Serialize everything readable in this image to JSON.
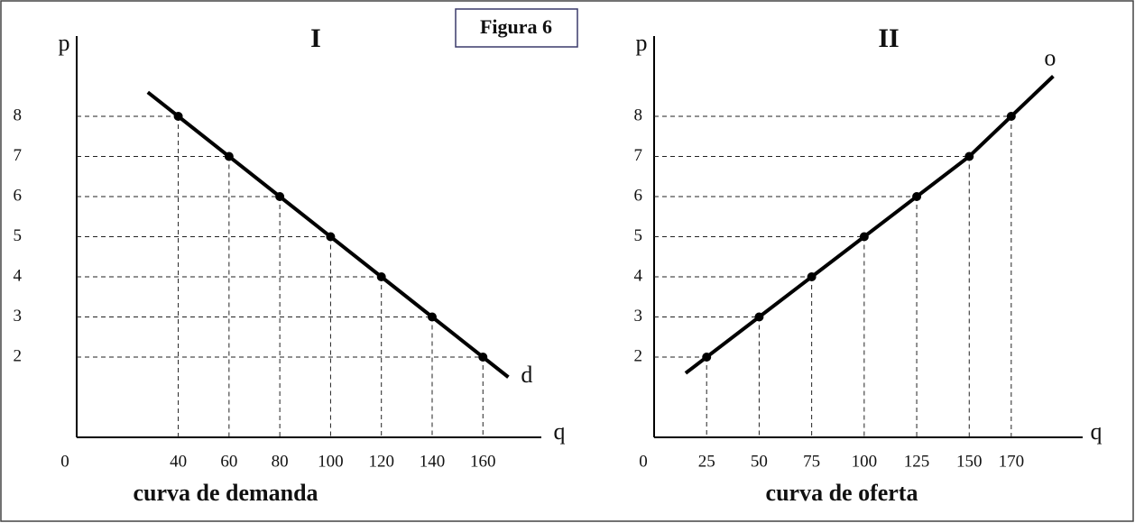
{
  "figure_label": "Figura 6",
  "chart_data": [
    {
      "type": "line",
      "title": "I",
      "caption": "curva de demanda",
      "xlabel": "q",
      "ylabel": "p",
      "curve_label": "d",
      "x": [
        40,
        60,
        80,
        100,
        120,
        140,
        160
      ],
      "series": [
        {
          "name": "d",
          "color": "#000000",
          "values": [
            8,
            7,
            6,
            5,
            4,
            3,
            2
          ]
        }
      ],
      "xlim": [
        0,
        183
      ],
      "ylim": [
        0,
        10
      ],
      "xticks": [
        0,
        40,
        60,
        80,
        100,
        120,
        140,
        160
      ],
      "yticks": [
        2,
        3,
        4,
        5,
        6,
        7,
        8
      ]
    },
    {
      "type": "line",
      "title": "II",
      "caption": "curva de oferta",
      "xlabel": "q",
      "ylabel": "p",
      "curve_label": "o",
      "x": [
        25,
        50,
        75,
        100,
        125,
        150,
        170
      ],
      "series": [
        {
          "name": "o",
          "color": "#000000",
          "values": [
            2,
            3,
            4,
            5,
            6,
            7,
            8
          ]
        }
      ],
      "xlim": [
        0,
        204
      ],
      "ylim": [
        0,
        10
      ],
      "xticks": [
        0,
        25,
        50,
        75,
        100,
        125,
        150,
        170
      ],
      "yticks": [
        2,
        3,
        4,
        5,
        6,
        7,
        8
      ]
    }
  ]
}
